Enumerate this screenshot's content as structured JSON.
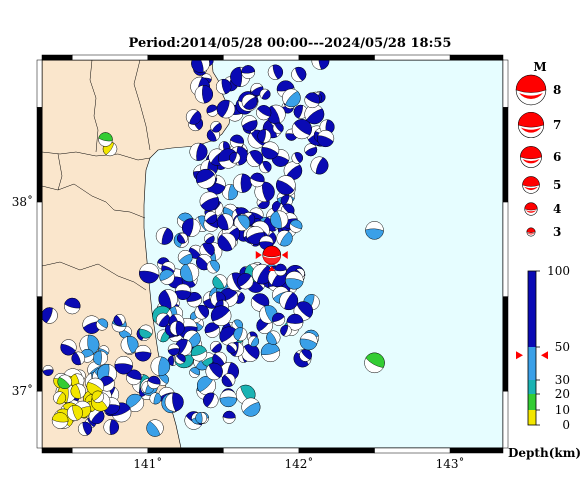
{
  "title": "Period:2014/05/28 00:00---2024/05/28 18:55",
  "map": {
    "lon_ticks": [
      {
        "value": 141,
        "label": "141˚"
      },
      {
        "value": 142,
        "label": "142˚"
      },
      {
        "value": 143,
        "label": "143˚"
      }
    ],
    "lat_ticks": [
      {
        "value": 38,
        "label": "38˚"
      },
      {
        "value": 37,
        "label": "37˚"
      }
    ],
    "lon_range": [
      140.3,
      143.35
    ],
    "lat_range": [
      36.7,
      38.75
    ],
    "colors": {
      "land": "#fae6cc",
      "sea": "#e6fdff",
      "frame_dark": "#000000"
    }
  },
  "magnitude_legend": {
    "title": "M",
    "items": [
      {
        "mag": 8,
        "label": "8"
      },
      {
        "mag": 7,
        "label": "7"
      },
      {
        "mag": 6,
        "label": "6"
      },
      {
        "mag": 5,
        "label": "5"
      },
      {
        "mag": 4,
        "label": "4"
      },
      {
        "mag": 3,
        "label": "3"
      }
    ],
    "color": "#ff0000"
  },
  "depth_legend": {
    "title": "Depth(km)",
    "labels": [
      {
        "depth": 100,
        "label": "100"
      },
      {
        "depth": 50,
        "label": "50"
      },
      {
        "depth": 30,
        "label": "30"
      },
      {
        "depth": 20,
        "label": "20"
      },
      {
        "depth": 10,
        "label": "10"
      },
      {
        "depth": 0,
        "label": "0"
      }
    ],
    "bands": [
      {
        "from": 0,
        "to": 10,
        "color": "#f2e600"
      },
      {
        "from": 10,
        "to": 20,
        "color": "#33cc33"
      },
      {
        "from": 20,
        "to": 30,
        "color": "#1ab3b3"
      },
      {
        "from": 30,
        "to": 50,
        "color": "#3aa0e8"
      },
      {
        "from": 50,
        "to": 100,
        "color": "#0a0ab4"
      }
    ],
    "marker_depth": 45
  },
  "highlight_event": {
    "lon": 141.82,
    "lat": 37.72,
    "mag": 5.8,
    "color": "#ff0000"
  }
}
